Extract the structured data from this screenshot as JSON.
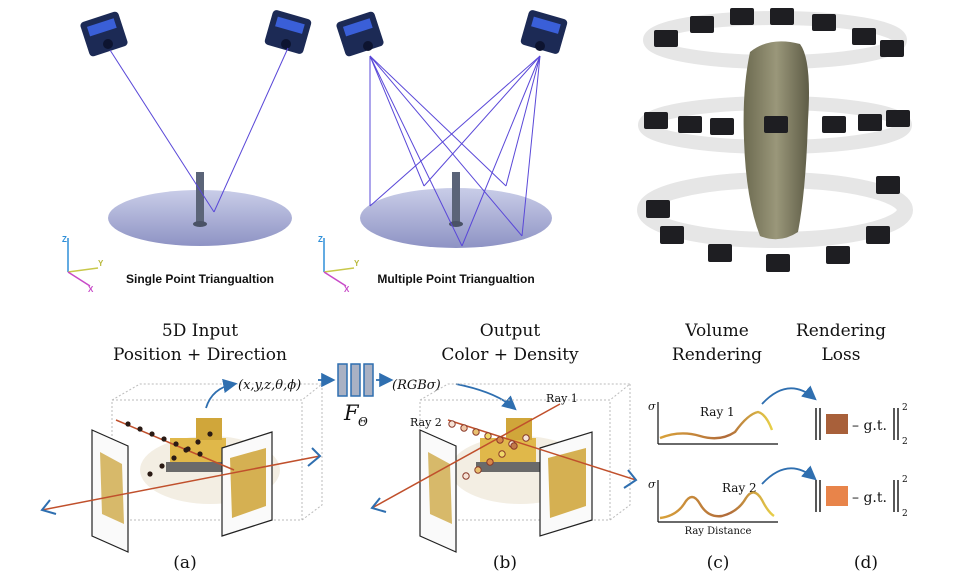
{
  "top": {
    "single_caption": "Single Point Triangualtion",
    "multiple_caption": "Multiple Point Triangualtion",
    "axis_z": "Z",
    "axis_y": "Y",
    "axis_x": "X"
  },
  "panels": {
    "a": {
      "title_line1": "5D Input",
      "title_line2": "Position + Direction",
      "tuple": "(x,y,z,θ,ϕ)",
      "label": "(a)"
    },
    "net": {
      "label": "F",
      "subscript": "Θ"
    },
    "b": {
      "title_line1": "Output",
      "title_line2": "Color + Density",
      "tuple": "(RGBσ)",
      "ray1": "Ray 1",
      "ray2": "Ray 2",
      "label": "(b)"
    },
    "c": {
      "title_line1": "Volume",
      "title_line2": "Rendering",
      "sigma": "σ",
      "ray1": "Ray 1",
      "ray2": "Ray 2",
      "xlabel": "Ray Distance",
      "label": "(c)"
    },
    "d": {
      "title_line1": "Rendering",
      "title_line2": "Loss",
      "gt": "– g.t.",
      "exponent": "2",
      "subscript": "2",
      "label": "(d)",
      "swatch1_color": "#a8603a",
      "swatch2_color": "#e8844a"
    }
  },
  "colors": {
    "ray_purple": "#5a48d8",
    "arrow_blue": "#2f6fb0",
    "ray_red": "#c0502c",
    "curve_orange": "#e0883a",
    "curve_yellow": "#e8d048"
  }
}
